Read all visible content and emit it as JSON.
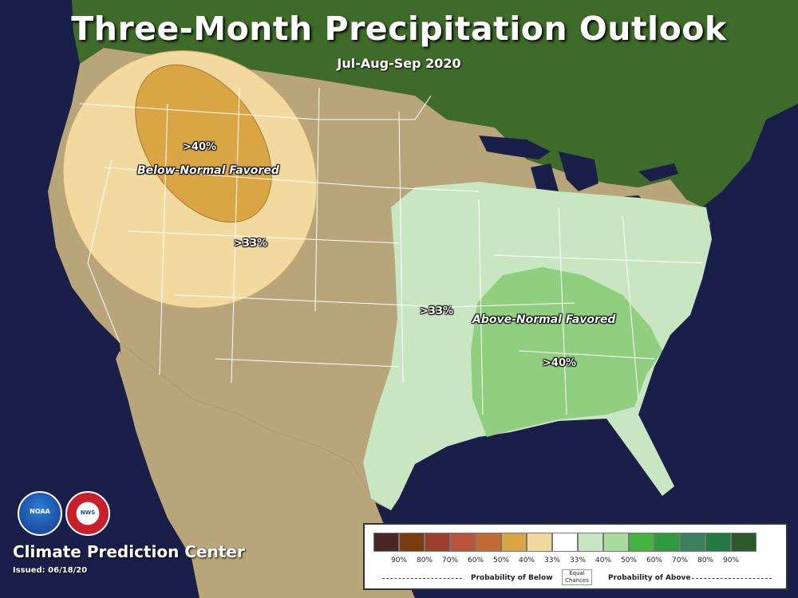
{
  "title": "Three-Month Precipitation Outlook",
  "subtitle": "Jul-Aug-Sep 2020",
  "map_labels": {
    "below_region": "Below-Normal Favored",
    "below_40": ">40%",
    "below_33": ">33%",
    "above_region": "Above-Normal Favored",
    "above_33": ">33%",
    "above_40": ">40%"
  },
  "footer": {
    "center_name": "Climate Prediction Center",
    "issued": "Issued: 06/18/20",
    "noaa_logo_text": "NOAA",
    "nws_logo_text": "NWS"
  },
  "colors": {
    "ocean": "#1a1f4a",
    "land_north": "#3f6b2a",
    "land_desert": "#b9a57a",
    "below_33": "#f2d9a0",
    "below_40": "#d9a545",
    "above_33": "#c8e6c1",
    "above_40": "#8fcf7f",
    "borders": "#ffffff"
  },
  "legend": {
    "swatches": [
      {
        "color": "#4a2727"
      },
      {
        "color": "#7a3d10"
      },
      {
        "color": "#9c3f2c"
      },
      {
        "color": "#b7543a"
      },
      {
        "color": "#c46a34"
      },
      {
        "color": "#d9a545"
      },
      {
        "color": "#f2d9a0"
      },
      {
        "color": "#ffffff"
      },
      {
        "color": "#c8e6c1"
      },
      {
        "color": "#a8dc9d"
      },
      {
        "color": "#44b33f"
      },
      {
        "color": "#2f9a3d"
      },
      {
        "color": "#3c7f5e"
      },
      {
        "color": "#227a42"
      },
      {
        "color": "#2d5a2d"
      }
    ],
    "ticks": [
      "90%",
      "80%",
      "70%",
      "60%",
      "50%",
      "40%",
      "33%",
      "33%",
      "40%",
      "50%",
      "60%",
      "70%",
      "80%",
      "90%"
    ],
    "prob_below": "Probability of Below",
    "equal_line1": "Equal",
    "equal_line2": "Chances",
    "prob_above": "Probability of Above"
  }
}
